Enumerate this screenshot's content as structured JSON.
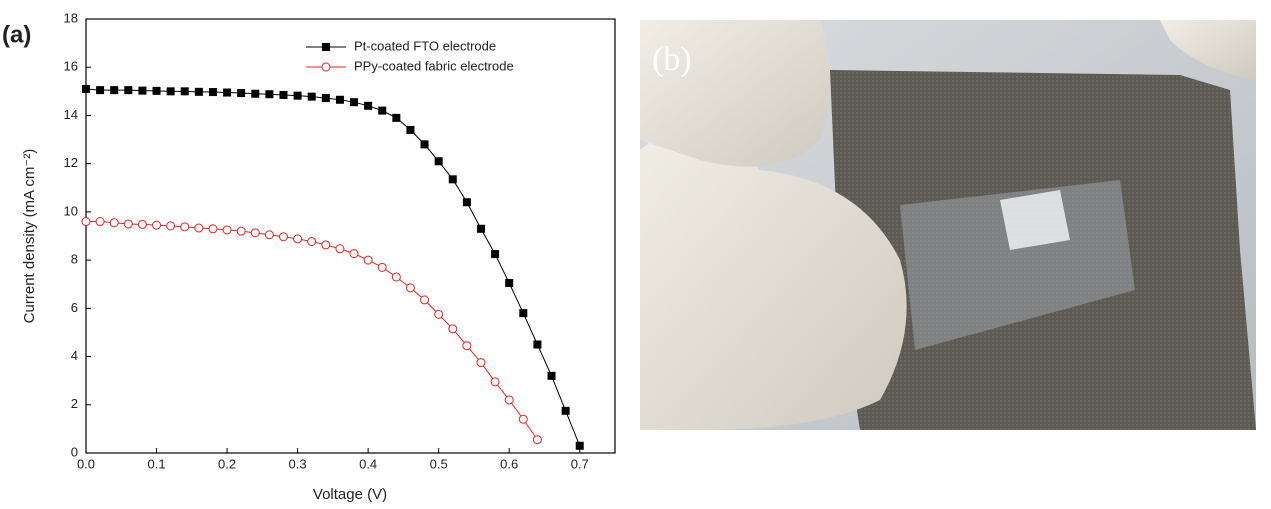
{
  "chart_data": {
    "type": "line",
    "panel_label": "(a)",
    "xlabel": "Voltage (V)",
    "ylabel": "Current density (mA cm⁻²)",
    "xlim": [
      0,
      0.75
    ],
    "ylim": [
      0,
      18
    ],
    "xticks": [
      {
        "value": 0,
        "label": "0.0"
      },
      0.1,
      0.2,
      0.3,
      0.4,
      0.5,
      0.6,
      0.7
    ],
    "yticks": [
      0,
      2,
      4,
      6,
      8,
      10,
      12,
      14,
      16,
      18
    ],
    "legend": "upper right",
    "series": [
      {
        "name": "Pt-coated FTO electrode",
        "color": "#000000",
        "marker": "square",
        "x": [
          0,
          0.02,
          0.04,
          0.06,
          0.08,
          0.1,
          0.12,
          0.14,
          0.16,
          0.18,
          0.2,
          0.22,
          0.24,
          0.26,
          0.28,
          0.3,
          0.32,
          0.34,
          0.36,
          0.38,
          0.4,
          0.42,
          0.44,
          0.46,
          0.48,
          0.5,
          0.52,
          0.54,
          0.56,
          0.58,
          0.6,
          0.62,
          0.64,
          0.66,
          0.68,
          0.7
        ],
        "values": [
          15.1,
          15.05,
          15.05,
          15.05,
          15.03,
          15.02,
          15.0,
          15.0,
          14.98,
          14.97,
          14.95,
          14.93,
          14.9,
          14.88,
          14.85,
          14.82,
          14.78,
          14.72,
          14.65,
          14.55,
          14.4,
          14.2,
          13.9,
          13.4,
          12.8,
          12.1,
          11.35,
          10.4,
          9.3,
          8.25,
          7.05,
          5.8,
          4.5,
          3.2,
          1.75,
          0.3
        ]
      },
      {
        "name": "PPy-coated fabric electrode",
        "color": "#e8211d",
        "marker": "circle",
        "x": [
          0,
          0.02,
          0.04,
          0.06,
          0.08,
          0.1,
          0.12,
          0.14,
          0.16,
          0.18,
          0.2,
          0.22,
          0.24,
          0.26,
          0.28,
          0.3,
          0.32,
          0.34,
          0.36,
          0.38,
          0.4,
          0.42,
          0.44,
          0.46,
          0.48,
          0.5,
          0.52,
          0.54,
          0.56,
          0.58,
          0.6,
          0.62,
          0.64
        ],
        "values": [
          9.6,
          9.6,
          9.55,
          9.5,
          9.48,
          9.45,
          9.42,
          9.38,
          9.33,
          9.3,
          9.25,
          9.2,
          9.13,
          9.05,
          8.97,
          8.88,
          8.77,
          8.63,
          8.47,
          8.27,
          8.0,
          7.7,
          7.3,
          6.85,
          6.35,
          5.75,
          5.15,
          4.45,
          3.75,
          2.95,
          2.2,
          1.4,
          0.55
        ]
      }
    ]
  },
  "photo": {
    "panel_label": "(b)"
  }
}
